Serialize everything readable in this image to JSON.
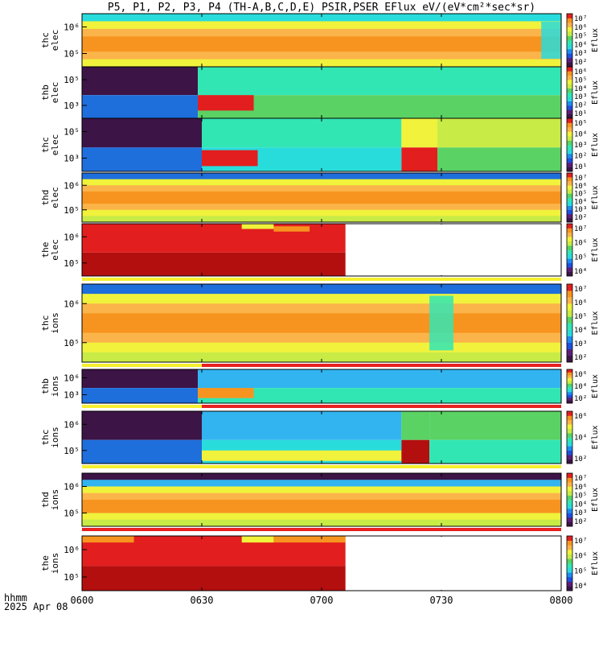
{
  "title": "P5, P1, P2, P3, P4 (TH-A,B,C,D,E) PSIR,PSER EFlux eV/(eV*cm²*sec*sr)",
  "footer": {
    "time_label": "hhmm",
    "date_label": "2025 Apr 08"
  },
  "colors": {
    "red": "#e21e1e",
    "dark_red": "#b40f0f",
    "orange": "#f7941f",
    "light_orange": "#fbb44a",
    "yellow": "#f0f23c",
    "yellow_green": "#c8eb46",
    "green": "#5ad264",
    "cyan_green": "#32e6b4",
    "cyan": "#28dcdc",
    "light_blue": "#32b4f0",
    "blue": "#1e6edc",
    "dark_purple": "#3c1446",
    "purple": "#5a1e78",
    "red_bar": "#e82020",
    "yellow_bar": "#f5ef2e"
  },
  "chart_data": {
    "type": "heatmap",
    "x_axis": {
      "ticks": [
        "0600",
        "0630",
        "0700",
        "0730",
        "0800"
      ],
      "xlim": [
        "06:00",
        "08:00"
      ]
    },
    "panels": [
      {
        "label": [
          "thc",
          "elec"
        ],
        "yticks": [
          "10⁶",
          "10⁵"
        ],
        "colorbar_ticks": [
          "10⁷",
          "10⁶",
          "10⁵",
          "10⁴",
          "10³",
          "10²"
        ],
        "colorbar_label": "Eflux",
        "pattern": "rows",
        "rows": [
          "cyan",
          "yellow",
          "light_orange",
          "orange",
          "orange",
          "light_orange",
          "yellow"
        ],
        "features": [
          {
            "from": "07:55",
            "to": "08:00",
            "color": "cyan"
          }
        ]
      },
      {
        "label": [
          "thb",
          "elec"
        ],
        "yticks": [
          "10⁵",
          "10³"
        ],
        "colorbar_ticks": [
          "10⁶",
          "10⁵",
          "10⁴",
          "10³",
          "10²",
          "10¹"
        ],
        "colorbar_label": "Eflux",
        "pattern": "blocks",
        "blocks": [
          {
            "from": "06:00",
            "to": "06:29",
            "top": "dark_purple",
            "bottom": "blue"
          },
          {
            "from": "06:29",
            "to": "08:00",
            "top": "cyan_green",
            "bottom": "green"
          },
          {
            "from": "06:29",
            "to": "06:43",
            "band": "red",
            "band_rows": [
              0.55,
              0.85
            ]
          }
        ]
      },
      {
        "label": [
          "thc",
          "elec"
        ],
        "yticks": [
          "10⁵",
          "10³"
        ],
        "colorbar_ticks": [
          "10⁵",
          "10⁴",
          "10³",
          "10²",
          "10¹"
        ],
        "colorbar_label": "Eflux",
        "pattern": "blocks",
        "blocks": [
          {
            "from": "06:00",
            "to": "06:30",
            "top": "dark_purple",
            "bottom": "blue"
          },
          {
            "from": "06:30",
            "to": "07:20",
            "top": "cyan_green",
            "bottom": "cyan"
          },
          {
            "from": "06:30",
            "to": "06:44",
            "band": "red",
            "band_rows": [
              0.6,
              0.9
            ]
          },
          {
            "from": "07:20",
            "to": "07:29",
            "top": "yellow",
            "bottom": "red"
          },
          {
            "from": "07:29",
            "to": "08:00",
            "top": "yellow_green",
            "bottom": "green"
          }
        ]
      },
      {
        "label": [
          "thd",
          "elec"
        ],
        "yticks": [
          "10⁶",
          "10⁵"
        ],
        "colorbar_ticks": [
          "10⁷",
          "10⁶",
          "10⁵",
          "10⁴",
          "10³",
          "10²"
        ],
        "colorbar_label": "Eflux",
        "pattern": "rows",
        "rows": [
          "blue",
          "yellow",
          "light_orange",
          "orange",
          "orange",
          "light_orange",
          "yellow",
          "yellow_green"
        ],
        "features": []
      },
      {
        "label": [
          "the",
          "elec"
        ],
        "yticks": [
          "10⁶",
          "10⁵"
        ],
        "colorbar_ticks": [
          "10⁷",
          "10⁶",
          "10⁵",
          "10⁴"
        ],
        "colorbar_label": "Eflux",
        "pattern": "blocks",
        "blocks": [
          {
            "from": "06:00",
            "to": "07:06",
            "top": "red",
            "bottom": "dark_red"
          },
          {
            "from": "06:40",
            "to": "06:48",
            "band": "yellow",
            "band_rows": [
              0.0,
              0.1
            ]
          },
          {
            "from": "06:48",
            "to": "06:57",
            "band": "orange",
            "band_rows": [
              0.05,
              0.15
            ]
          }
        ],
        "bar_below": "yellow_bar"
      },
      {
        "label": [
          "thc",
          "ions"
        ],
        "yticks": [
          "10⁶",
          "10⁵"
        ],
        "colorbar_ticks": [
          "10⁷",
          "10⁶",
          "10⁵",
          "10⁴",
          "10³",
          "10²"
        ],
        "colorbar_label": "Eflux",
        "pattern": "rows",
        "rows": [
          "blue",
          "yellow",
          "light_orange",
          "orange",
          "orange",
          "light_orange",
          "yellow",
          "yellow_green"
        ],
        "features": [
          {
            "from": "07:27",
            "to": "07:33",
            "color": "cyan_green"
          }
        ],
        "bar_below": "red_bar"
      },
      {
        "label": [
          "thb",
          "ions"
        ],
        "yticks": [
          "10⁶",
          "10³"
        ],
        "colorbar_ticks": [
          "10⁶",
          "10⁴",
          "10²"
        ],
        "colorbar_label": "Eflux",
        "pattern": "blocks",
        "blocks": [
          {
            "from": "06:00",
            "to": "06:29",
            "top": "dark_purple",
            "bottom": "blue"
          },
          {
            "from": "06:29",
            "to": "08:00",
            "top": "light_blue",
            "bottom": "cyan_green"
          },
          {
            "from": "06:29",
            "to": "06:43",
            "band": "orange",
            "band_rows": [
              0.55,
              0.85
            ]
          }
        ],
        "bar_below": "red_bar"
      },
      {
        "label": [
          "thc",
          "ions"
        ],
        "yticks": [
          "10⁶",
          "10⁵"
        ],
        "colorbar_ticks": [
          "10⁶",
          "10⁴",
          "10²"
        ],
        "colorbar_label": "Eflux",
        "pattern": "blocks",
        "blocks": [
          {
            "from": "06:00",
            "to": "06:30",
            "top": "dark_purple",
            "bottom": "blue"
          },
          {
            "from": "06:30",
            "to": "07:20",
            "top": "light_blue",
            "bottom": "cyan"
          },
          {
            "from": "06:30",
            "to": "07:20",
            "band": "yellow",
            "band_rows": [
              0.75,
              0.95
            ]
          },
          {
            "from": "07:20",
            "to": "07:27",
            "top": "green",
            "bottom": "dark_red"
          },
          {
            "from": "07:27",
            "to": "08:00",
            "top": "green",
            "bottom": "cyan_green"
          }
        ],
        "bar_below": "yellow_bar"
      },
      {
        "label": [
          "thd",
          "ions"
        ],
        "yticks": [
          "10⁶",
          "10⁵"
        ],
        "colorbar_ticks": [
          "10⁷",
          "10⁶",
          "10⁵",
          "10⁴",
          "10³",
          "10²"
        ],
        "colorbar_label": "Eflux",
        "pattern": "rows",
        "rows": [
          "dark_purple",
          "light_blue",
          "yellow",
          "light_orange",
          "orange",
          "orange",
          "yellow",
          "yellow_green"
        ],
        "features": [],
        "bar_below": "red_bar"
      },
      {
        "label": [
          "the",
          "ions"
        ],
        "yticks": [
          "10⁶",
          "10⁵"
        ],
        "colorbar_ticks": [
          "10⁷",
          "10⁶",
          "10⁵",
          "10⁴"
        ],
        "colorbar_label": "Eflux",
        "pattern": "blocks",
        "blocks": [
          {
            "from": "06:00",
            "to": "07:06",
            "top": "red",
            "bottom": "dark_red"
          },
          {
            "from": "06:00",
            "to": "06:13",
            "band": "orange",
            "band_rows": [
              0.0,
              0.12
            ]
          },
          {
            "from": "06:40",
            "to": "06:48",
            "band": "yellow",
            "band_rows": [
              0.0,
              0.12
            ]
          },
          {
            "from": "06:48",
            "to": "07:06",
            "band": "orange",
            "band_rows": [
              0.0,
              0.12
            ]
          }
        ]
      }
    ]
  }
}
